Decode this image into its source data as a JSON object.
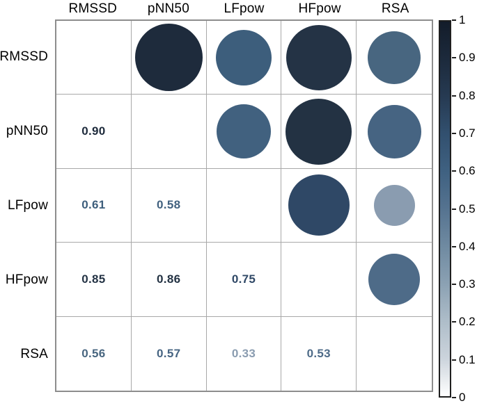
{
  "chart_data": {
    "type": "heatmap",
    "subtype": "correlation-matrix-circles",
    "title": "",
    "variables": [
      "RMSSD",
      "pNN50",
      "LFpow",
      "HFpow",
      "RSA"
    ],
    "layout_hint": "upper triangle = circles sized/colored by r; lower triangle = bold numeric r values colored by r; diagonal empty",
    "pairs": [
      {
        "a": "RMSSD",
        "b": "pNN50",
        "r": 0.9,
        "label": "0.90",
        "color": "#1e2b3c"
      },
      {
        "a": "RMSSD",
        "b": "LFpow",
        "r": 0.61,
        "label": "0.61",
        "color": "#3d5e7c"
      },
      {
        "a": "RMSSD",
        "b": "HFpow",
        "r": 0.85,
        "label": "0.85",
        "color": "#243345"
      },
      {
        "a": "RMSSD",
        "b": "RSA",
        "r": 0.56,
        "label": "0.56",
        "color": "#486680"
      },
      {
        "a": "pNN50",
        "b": "LFpow",
        "r": 0.58,
        "label": "0.58",
        "color": "#41617f"
      },
      {
        "a": "pNN50",
        "b": "HFpow",
        "r": 0.86,
        "label": "0.86",
        "color": "#233243"
      },
      {
        "a": "pNN50",
        "b": "RSA",
        "r": 0.57,
        "label": "0.57",
        "color": "#466482"
      },
      {
        "a": "LFpow",
        "b": "HFpow",
        "r": 0.75,
        "label": "0.75",
        "color": "#2f4866"
      },
      {
        "a": "LFpow",
        "b": "RSA",
        "r": 0.33,
        "label": "0.33",
        "color": "#8a9cb0"
      },
      {
        "a": "HFpow",
        "b": "RSA",
        "r": 0.53,
        "label": "0.53",
        "color": "#4e6b88"
      }
    ],
    "colorbar": {
      "min": 0,
      "max": 1,
      "tick_labels": [
        "1",
        "0.9",
        "0.8",
        "0.7",
        "0.6",
        "0.5",
        "0.4",
        "0.3",
        "0.2",
        "0.1",
        "0"
      ],
      "gradient_stops": [
        {
          "v": 0.0,
          "color": "#ffffff"
        },
        {
          "v": 0.1,
          "color": "#ccd4dc"
        },
        {
          "v": 0.2,
          "color": "#aebdc9"
        },
        {
          "v": 0.3,
          "color": "#8ba1b3"
        },
        {
          "v": 0.4,
          "color": "#6f8aa1"
        },
        {
          "v": 0.5,
          "color": "#557390"
        },
        {
          "v": 0.6,
          "color": "#3f6181"
        },
        {
          "v": 0.7,
          "color": "#32506f"
        },
        {
          "v": 0.8,
          "color": "#263a52"
        },
        {
          "v": 0.9,
          "color": "#1c2a3c"
        },
        {
          "v": 1.0,
          "color": "#131c2a"
        }
      ]
    },
    "grid_line_color": "#a8a8a8",
    "outer_border_color": "#8d8d8d"
  }
}
